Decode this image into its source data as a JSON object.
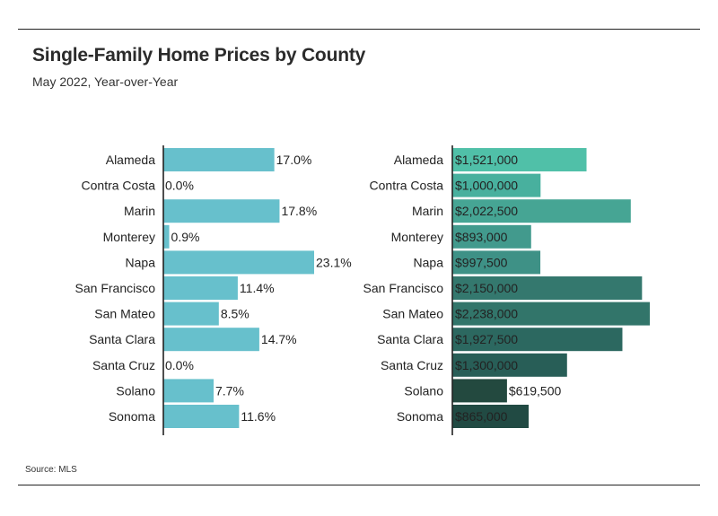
{
  "title": "Single-Family Home Prices by County",
  "subtitle": "May 2022, Year-over-Year",
  "source": "Source: MLS",
  "chart_data": [
    {
      "type": "bar",
      "orientation": "horizontal",
      "categories": [
        "Alameda",
        "Contra Costa",
        "Marin",
        "Monterey",
        "Napa",
        "San Francisco",
        "San Mateo",
        "Santa Clara",
        "Santa Cruz",
        "Solano",
        "Sonoma"
      ],
      "values": [
        17.0,
        0.0,
        17.8,
        0.9,
        23.1,
        11.4,
        8.5,
        14.7,
        0.0,
        7.7,
        11.6
      ],
      "labels": [
        "17.0%",
        "0.0%",
        "17.8%",
        "0.9%",
        "23.1%",
        "11.4%",
        "8.5%",
        "14.7%",
        "0.0%",
        "7.7%",
        "11.6%"
      ],
      "unit": "%",
      "color": "#67c0cc",
      "xlim": [
        0,
        23.1
      ]
    },
    {
      "type": "bar",
      "orientation": "horizontal",
      "categories": [
        "Alameda",
        "Contra Costa",
        "Marin",
        "Monterey",
        "Napa",
        "San Francisco",
        "San Mateo",
        "Santa Clara",
        "Santa Cruz",
        "Solano",
        "Sonoma"
      ],
      "values": [
        1521000,
        1000000,
        2022500,
        893000,
        997500,
        2150000,
        2238000,
        1927500,
        1300000,
        619500,
        865000
      ],
      "labels": [
        "$1,521,000",
        "$1,000,000",
        "$2,022,500",
        "$893,000",
        "$997,500",
        "$2,150,000",
        "$2,238,000",
        "$1,927,500",
        "$1,300,000",
        "$619,500",
        "$865,000"
      ],
      "colors": [
        "#50c0a8",
        "#48b09e",
        "#46a594",
        "#429a8d",
        "#3e9186",
        "#34786e",
        "#32756a",
        "#2c6860",
        "#285e57",
        "#23493f",
        "#214a43"
      ],
      "label_colors": [
        "#222222",
        "#222222",
        "#222222",
        "#ffffff",
        "#ffffff",
        "#ffffff",
        "#ffffff",
        "#ffffff",
        "#ffffff",
        "#222222",
        "#ffffff"
      ],
      "label_inside": [
        true,
        true,
        true,
        true,
        true,
        true,
        true,
        true,
        true,
        false,
        true
      ],
      "xlim": [
        0,
        2238000
      ]
    }
  ]
}
